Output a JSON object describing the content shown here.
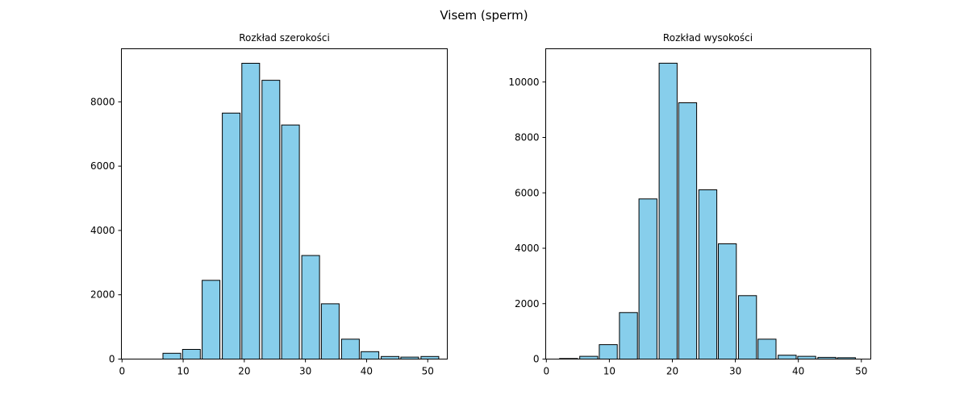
{
  "figure": {
    "suptitle": "Visem (sperm)",
    "bar_color": "#87CEEB",
    "edge_color": "#000000"
  },
  "chart_data": [
    {
      "type": "bar",
      "title": "Rozkład szerokości",
      "xlabel": "",
      "ylabel": "",
      "xlim": [
        -0.1,
        53.2
      ],
      "ylim": [
        0,
        9650
      ],
      "xticks": [
        0,
        10,
        20,
        30,
        40,
        50
      ],
      "yticks": [
        0,
        2000,
        4000,
        6000,
        8000
      ],
      "bin_width": 3.25,
      "bar_width": 2.9,
      "bins": [
        {
          "x": 3.4,
          "value": 0
        },
        {
          "x": 6.7,
          "value": 180
        },
        {
          "x": 9.9,
          "value": 300
        },
        {
          "x": 13.1,
          "value": 2450
        },
        {
          "x": 16.4,
          "value": 7650
        },
        {
          "x": 19.6,
          "value": 9200
        },
        {
          "x": 22.9,
          "value": 8670
        },
        {
          "x": 26.1,
          "value": 7280
        },
        {
          "x": 29.4,
          "value": 3220
        },
        {
          "x": 32.6,
          "value": 1720
        },
        {
          "x": 35.9,
          "value": 620
        },
        {
          "x": 39.1,
          "value": 230
        },
        {
          "x": 42.4,
          "value": 80
        },
        {
          "x": 45.6,
          "value": 60
        },
        {
          "x": 48.9,
          "value": 80
        }
      ],
      "grid": false,
      "legend": "none"
    },
    {
      "type": "bar",
      "title": "Rozkład wysokości",
      "xlabel": "",
      "ylabel": "",
      "xlim": [
        -0.1,
        51.5
      ],
      "ylim": [
        0,
        11200
      ],
      "xticks": [
        0,
        10,
        20,
        30,
        40,
        50
      ],
      "yticks": [
        0,
        2000,
        4000,
        6000,
        8000,
        10000
      ],
      "bin_width": 3.15,
      "bar_width": 2.85,
      "bins": [
        {
          "x": 2.1,
          "value": 20
        },
        {
          "x": 5.3,
          "value": 100
        },
        {
          "x": 8.4,
          "value": 520
        },
        {
          "x": 11.6,
          "value": 1680
        },
        {
          "x": 14.7,
          "value": 5780
        },
        {
          "x": 17.9,
          "value": 10680
        },
        {
          "x": 21.0,
          "value": 9250
        },
        {
          "x": 24.2,
          "value": 6110
        },
        {
          "x": 27.3,
          "value": 4160
        },
        {
          "x": 30.5,
          "value": 2290
        },
        {
          "x": 33.6,
          "value": 720
        },
        {
          "x": 36.8,
          "value": 140
        },
        {
          "x": 39.9,
          "value": 100
        },
        {
          "x": 43.1,
          "value": 60
        },
        {
          "x": 46.2,
          "value": 50
        }
      ],
      "grid": false,
      "legend": "none"
    }
  ]
}
